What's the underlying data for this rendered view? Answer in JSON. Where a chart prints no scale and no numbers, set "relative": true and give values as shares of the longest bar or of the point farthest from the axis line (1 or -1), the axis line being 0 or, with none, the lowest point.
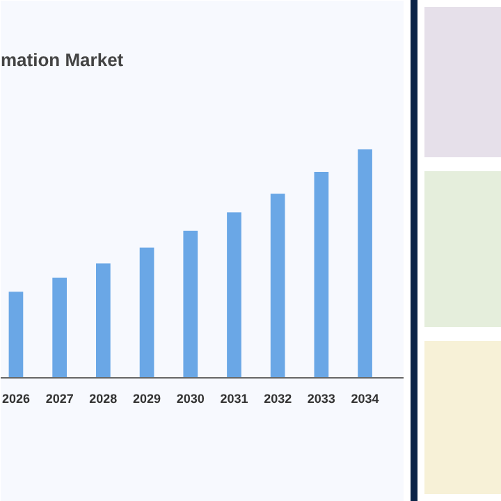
{
  "chart_data": {
    "type": "bar",
    "title": "mation Market",
    "categories": [
      "2026",
      "2027",
      "2028",
      "2029",
      "2030",
      "2031",
      "2032",
      "2033",
      "2034"
    ],
    "values": [
      0.377,
      0.438,
      0.501,
      0.57,
      0.643,
      0.724,
      0.805,
      0.901,
      1
    ],
    "color": "#6aa7e6",
    "relative": true
  }
}
